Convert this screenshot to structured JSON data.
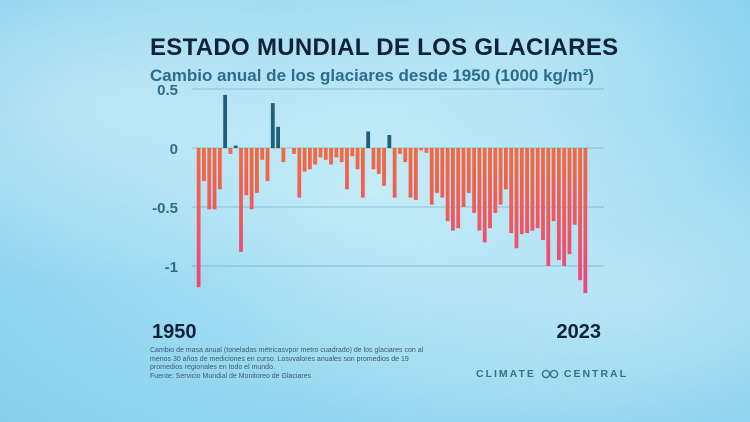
{
  "title": "ESTADO MUNDIAL DE LOS GLACIARES",
  "subtitle": "Cambio anual de los glaciares desde 1950 (1000 kg/m²)",
  "footnote": {
    "line1": "Cambio de masa anual (toneladas métricasvpor metro cuadrado) de los glaciares con al",
    "line2": "menos 30 años de mediciones en curso. Losvvalores anuales son promedios de 19",
    "line3": "promedios regionales en todo el mundo.",
    "line4": "Fuente: Servicio Mundial de Monitoreo de Glaciares"
  },
  "brand": "CLIMATE CENTRAL",
  "colors": {
    "negative_top": "#f26a3f",
    "negative_bottom": "#ec3f8a",
    "positive": "#1f5f78",
    "title": "#0f2238",
    "subtitle": "#2a6d8c"
  },
  "chart_data": {
    "type": "bar",
    "x_start": 1950,
    "x_end": 2023,
    "x_tick_labels": [
      "1950",
      "2023"
    ],
    "ylim": [
      -1.2,
      0.55
    ],
    "y_ticks": [
      0.5,
      0,
      -0.5,
      -1
    ],
    "y_tick_labels": [
      "0.5",
      "0",
      "-0.5",
      "-1"
    ],
    "grid": true,
    "values": [
      -1.18,
      -0.28,
      -0.52,
      -0.52,
      -0.35,
      0.45,
      -0.05,
      0.02,
      -0.88,
      -0.4,
      -0.52,
      -0.38,
      -0.1,
      -0.28,
      0.38,
      0.18,
      -0.12,
      0.0,
      -0.05,
      -0.42,
      -0.2,
      -0.18,
      -0.14,
      -0.08,
      -0.1,
      -0.14,
      -0.08,
      -0.12,
      -0.35,
      -0.07,
      -0.18,
      -0.42,
      0.14,
      -0.18,
      -0.22,
      -0.32,
      0.11,
      -0.42,
      -0.05,
      -0.12,
      -0.42,
      -0.44,
      -0.02,
      -0.04,
      -0.48,
      -0.38,
      -0.42,
      -0.62,
      -0.7,
      -0.68,
      -0.5,
      -0.38,
      -0.55,
      -0.7,
      -0.8,
      -0.68,
      -0.55,
      -0.48,
      -0.35,
      -0.72,
      -0.85,
      -0.73,
      -0.72,
      -0.7,
      -0.68,
      -0.78,
      -1.0,
      -0.62,
      -0.95,
      -1.0,
      -0.9,
      -0.65,
      -1.12,
      -1.23
    ]
  }
}
